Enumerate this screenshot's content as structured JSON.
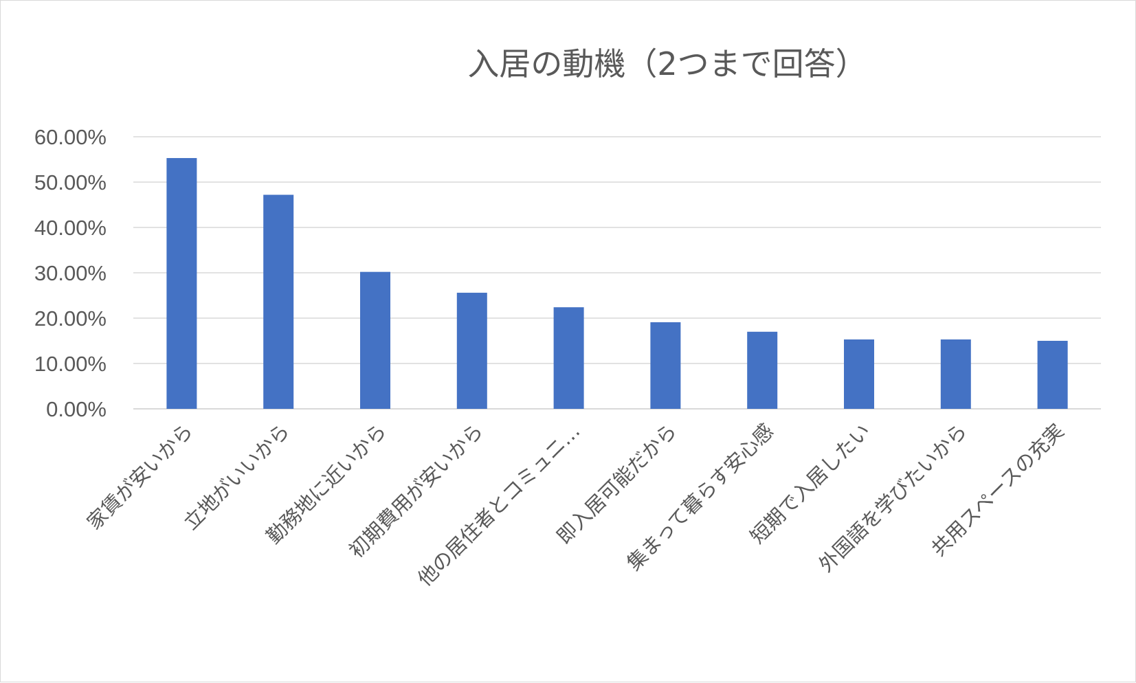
{
  "chart_data": {
    "type": "bar",
    "title": "入居の動機（2つまで回答）",
    "categories": [
      "家賃が安いから",
      "立地がいいから",
      "勤務地に近いから",
      "初期費用が安いから",
      "他の居住者とコミュニ…",
      "即入居可能だから",
      "集まって暮らす安心感",
      "短期で入居したい",
      "外国語を学びたいから",
      "共用スペースの充実"
    ],
    "values": [
      0.553,
      0.472,
      0.302,
      0.256,
      0.224,
      0.191,
      0.17,
      0.153,
      0.153,
      0.15
    ],
    "ylim": [
      0,
      0.6
    ],
    "yticks": [
      "0.00%",
      "10.00%",
      "20.00%",
      "30.00%",
      "40.00%",
      "50.00%",
      "60.00%"
    ],
    "grid": true,
    "legend": "none",
    "bar_color": "#4472c4",
    "grid_color": "#d9d9d9",
    "text_color": "#595959"
  }
}
